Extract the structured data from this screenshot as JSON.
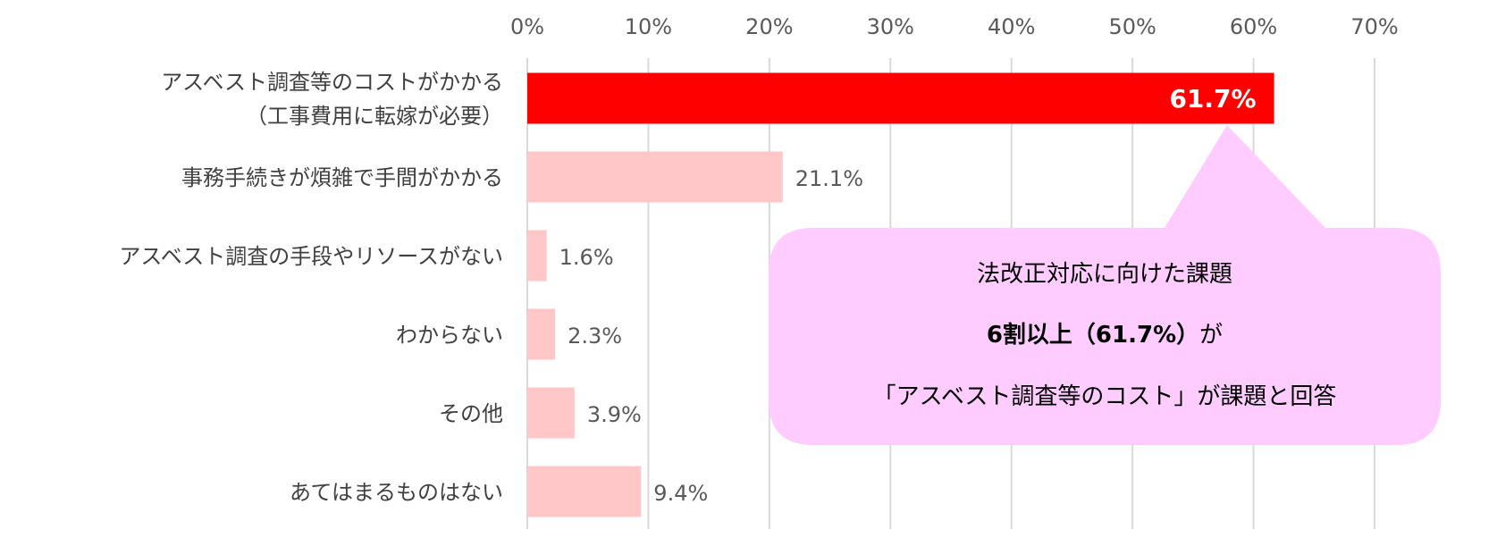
{
  "chart_data": {
    "type": "bar",
    "orientation": "horizontal",
    "categories": [
      [
        "アスベスト調査等のコストがかかる",
        "（工事費用に転嫁が必要）"
      ],
      [
        "事務手続きが煩雑で手間がかかる"
      ],
      [
        "アスベスト調査の手段やリソースがない"
      ],
      [
        "わからない"
      ],
      [
        "その他"
      ],
      [
        "あてはまるものはない"
      ]
    ],
    "values": [
      61.7,
      21.1,
      1.6,
      2.3,
      3.9,
      9.4
    ],
    "value_labels": [
      "61.7%",
      "21.1%",
      "1.6%",
      "2.3%",
      "3.9%",
      "9.4%"
    ],
    "xlim": [
      0,
      70
    ],
    "x_ticks": [
      0,
      10,
      20,
      30,
      40,
      50,
      60,
      70
    ],
    "x_tick_labels": [
      "0%",
      "10%",
      "20%",
      "30%",
      "40%",
      "50%",
      "60%",
      "70%"
    ],
    "grid": true,
    "axis_position": "top",
    "highlight_index": 0,
    "colors": {
      "highlight": "#ff0000",
      "bar": "#ffc7c7",
      "grid": "#d9d9d9",
      "callout_fill": "#ffccff"
    },
    "callout": {
      "line1": "法改正対応に向けた課題",
      "line2_bold": "6割以上（61.7%）",
      "line2_rest": "が",
      "line3": "「アスベスト調査等のコスト」が課題と回答"
    }
  }
}
